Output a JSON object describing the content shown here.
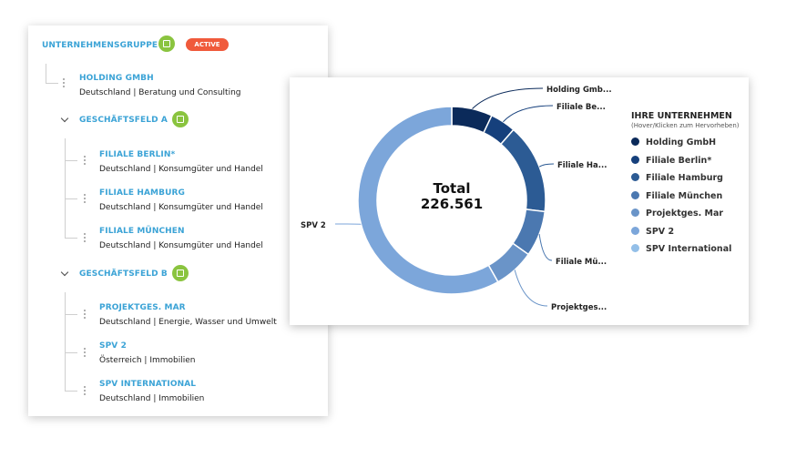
{
  "tree": {
    "group_title": "UNTERNEHMENSGRUPPE",
    "badge": "ACTIVE",
    "holding": {
      "name": "HOLDING GMBH",
      "desc": "Deutschland | Beratung und Consulting"
    },
    "fields": [
      {
        "name": "GESCHÄFTSFELD A",
        "entities": [
          {
            "name": "FILIALE BERLIN*",
            "desc": "Deutschland | Konsumgüter und Handel"
          },
          {
            "name": "FILIALE HAMBURG",
            "desc": "Deutschland | Konsumgüter und Handel"
          },
          {
            "name": "FILIALE MÜNCHEN",
            "desc": "Deutschland | Konsumgüter und Handel"
          }
        ]
      },
      {
        "name": "GESCHÄFTSFELD B",
        "entities": [
          {
            "name": "PROJEKTGES. MAR",
            "desc": "Deutschland | Energie, Wasser und Umwelt"
          },
          {
            "name": "SPV 2",
            "desc": "Österreich | Immobilien"
          },
          {
            "name": "SPV INTERNATIONAL",
            "desc": "Deutschland | Immobilien"
          }
        ]
      }
    ]
  },
  "chart": {
    "center_label": "Total",
    "center_value": "226.561",
    "legend_title": "IHRE UNTERNEHMEN",
    "legend_subtitle": "(Hover/Klicken zum Hervorheben)",
    "callouts": [
      "Holding Gmb...",
      "Filiale Be...",
      "Filiale Ha...",
      "Filiale Mü...",
      "Projektges...",
      "SPV 2"
    ]
  },
  "chart_data": {
    "type": "pie",
    "variant": "donut",
    "categories": [
      "Holding GmbH",
      "Filiale Berlin*",
      "Filiale Hamburg",
      "Filiale München",
      "Projektges. Mar",
      "SPV 2",
      "SPV International"
    ],
    "values": [
      15900,
      10000,
      35100,
      17800,
      15900,
      131861,
      0
    ],
    "colors": [
      "#0b2a5a",
      "#16407c",
      "#2c5b94",
      "#4b78b0",
      "#6a94c8",
      "#7ca6da",
      "#93bfe8"
    ],
    "total": 226561,
    "legend_position": "right"
  }
}
